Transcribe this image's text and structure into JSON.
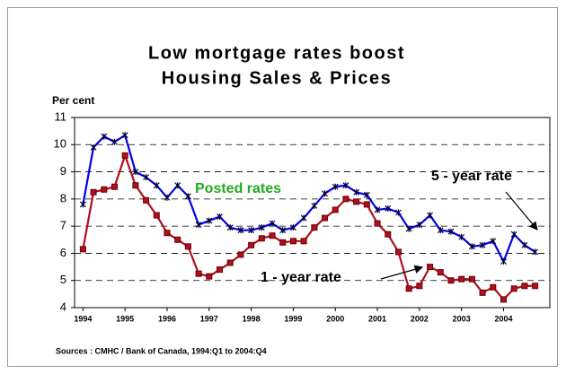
{
  "chart_data": {
    "type": "line",
    "title": [
      "Low mortgage rates boost",
      "Housing Sales & Prices"
    ],
    "y_label": "Per cent",
    "source": "Sources : CMHC / Bank of Canada, 1994:Q1 to 2004:Q4",
    "annotation": "Posted rates",
    "x": [
      1994,
      1994.25,
      1994.5,
      1994.75,
      1995,
      1995.25,
      1995.5,
      1995.75,
      1996,
      1996.25,
      1996.5,
      1996.75,
      1997,
      1997.25,
      1997.5,
      1997.75,
      1998,
      1998.25,
      1998.5,
      1998.75,
      1999,
      1999.25,
      1999.5,
      1999.75,
      2000,
      2000.25,
      2000.5,
      2000.75,
      2001,
      2001.25,
      2001.5,
      2001.75,
      2002,
      2002.25,
      2002.5,
      2002.75,
      2003,
      2003.25,
      2003.5,
      2003.75,
      2004,
      2004.25,
      2004.5,
      2004.75
    ],
    "series": [
      {
        "name": "5 - year rate",
        "color": "#0000ee",
        "marker": "star",
        "values": [
          7.8,
          9.9,
          10.3,
          10.1,
          10.35,
          9.0,
          8.8,
          8.5,
          8.05,
          8.5,
          8.1,
          7.05,
          7.2,
          7.35,
          6.95,
          6.85,
          6.85,
          6.95,
          7.1,
          6.85,
          6.95,
          7.3,
          7.75,
          8.2,
          8.45,
          8.5,
          8.25,
          8.15,
          7.6,
          7.65,
          7.5,
          6.9,
          7.05,
          7.4,
          6.85,
          6.8,
          6.6,
          6.25,
          6.3,
          6.45,
          5.7,
          6.7,
          6.3,
          6.05
        ]
      },
      {
        "name": "1 - year rate",
        "color": "#b01020",
        "marker": "square",
        "values": [
          6.15,
          8.25,
          8.35,
          8.45,
          9.6,
          8.5,
          7.95,
          7.4,
          6.75,
          6.5,
          6.25,
          5.25,
          5.15,
          5.4,
          5.65,
          5.95,
          6.3,
          6.55,
          6.65,
          6.4,
          6.45,
          6.45,
          6.95,
          7.3,
          7.6,
          8.0,
          7.9,
          7.8,
          7.1,
          6.7,
          6.05,
          4.7,
          4.8,
          5.5,
          5.3,
          5.0,
          5.05,
          5.05,
          4.55,
          4.75,
          4.3,
          4.7,
          4.8,
          4.8
        ]
      }
    ],
    "xlim": [
      1993.8,
      2005.1
    ],
    "xticks": [
      1994,
      1995,
      1996,
      1997,
      1998,
      1999,
      2000,
      2001,
      2002,
      2003,
      2004
    ],
    "ylim": [
      4,
      11
    ],
    "yticks": [
      4,
      5,
      6,
      7,
      8,
      9,
      10,
      11
    ],
    "grid": true
  }
}
